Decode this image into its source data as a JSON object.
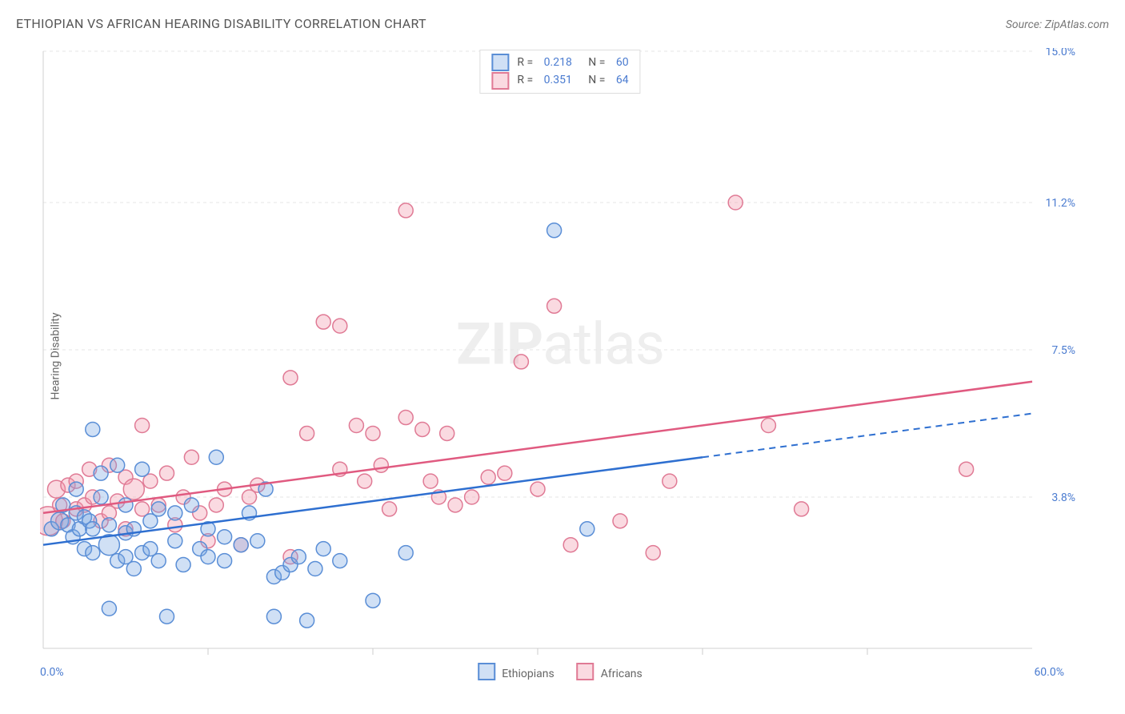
{
  "title": "ETHIOPIAN VS AFRICAN HEARING DISABILITY CORRELATION CHART",
  "source": "Source: ZipAtlas.com",
  "watermark_zip": "ZIP",
  "watermark_atlas": "atlas",
  "ylabel": "Hearing Disability",
  "chart": {
    "type": "scatter",
    "xlim": [
      0,
      60
    ],
    "ylim": [
      0,
      15
    ],
    "x_min_label": "0.0%",
    "x_max_label": "60.0%",
    "y_ticks": [
      3.8,
      7.5,
      11.2,
      15.0
    ],
    "y_tick_labels": [
      "3.8%",
      "7.5%",
      "11.2%",
      "15.0%"
    ],
    "x_tick_positions": [
      10,
      20,
      30,
      40,
      50
    ],
    "grid_color": "#e5e5e5",
    "tick_color": "#cccccc",
    "axis_color": "#d0d0d0",
    "background_color": "#ffffff",
    "axis_label_color": "#4a7bd0",
    "series": [
      {
        "name": "Ethiopians",
        "fill": "rgba(120,165,225,0.35)",
        "stroke": "#5a8ed6",
        "line_color": "#2e6fd0",
        "marker_r": 9,
        "stroke_width": 1.5,
        "R_label": "R = ",
        "R": 0.218,
        "N_label": "   N = ",
        "N": 60,
        "trend": {
          "x1": 0,
          "y1": 2.6,
          "x2": 40,
          "y2": 4.8,
          "dash_to_x": 60,
          "dash_to_y": 5.9
        },
        "points": [
          [
            0.5,
            3.0,
            9
          ],
          [
            1,
            3.2,
            11
          ],
          [
            1.2,
            3.6,
            9
          ],
          [
            1.5,
            3.1,
            9
          ],
          [
            1.8,
            2.8,
            9
          ],
          [
            2,
            3.4,
            9
          ],
          [
            2,
            4.0,
            9
          ],
          [
            2.2,
            3.0,
            9
          ],
          [
            2.5,
            3.3,
            9
          ],
          [
            2.5,
            2.5,
            9
          ],
          [
            2.8,
            3.2,
            9
          ],
          [
            3,
            5.5,
            9
          ],
          [
            3,
            3.0,
            9
          ],
          [
            3,
            2.4,
            9
          ],
          [
            3.5,
            4.4,
            9
          ],
          [
            3.5,
            3.8,
            9
          ],
          [
            4,
            2.6,
            13
          ],
          [
            4,
            3.1,
            9
          ],
          [
            4,
            1.0,
            9
          ],
          [
            4.5,
            4.6,
            9
          ],
          [
            4.5,
            2.2,
            9
          ],
          [
            5,
            2.3,
            9
          ],
          [
            5,
            3.6,
            9
          ],
          [
            5,
            2.9,
            9
          ],
          [
            5.5,
            3.0,
            9
          ],
          [
            5.5,
            2.0,
            9
          ],
          [
            6,
            4.5,
            9
          ],
          [
            6,
            2.4,
            9
          ],
          [
            6.5,
            3.2,
            9
          ],
          [
            6.5,
            2.5,
            9
          ],
          [
            7,
            2.2,
            9
          ],
          [
            7,
            3.5,
            9
          ],
          [
            7.5,
            0.8,
            9
          ],
          [
            8,
            2.7,
            9
          ],
          [
            8,
            3.4,
            9
          ],
          [
            8.5,
            2.1,
            9
          ],
          [
            9,
            3.6,
            9
          ],
          [
            9.5,
            2.5,
            9
          ],
          [
            10,
            2.3,
            9
          ],
          [
            10,
            3.0,
            9
          ],
          [
            10.5,
            4.8,
            9
          ],
          [
            11,
            2.2,
            9
          ],
          [
            11,
            2.8,
            9
          ],
          [
            12,
            2.6,
            9
          ],
          [
            12.5,
            3.4,
            9
          ],
          [
            13,
            2.7,
            9
          ],
          [
            13.5,
            4.0,
            9
          ],
          [
            14,
            1.8,
            9
          ],
          [
            14,
            0.8,
            9
          ],
          [
            14.5,
            1.9,
            9
          ],
          [
            15,
            2.1,
            9
          ],
          [
            15.5,
            2.3,
            9
          ],
          [
            16,
            0.7,
            9
          ],
          [
            16.5,
            2.0,
            9
          ],
          [
            17,
            2.5,
            9
          ],
          [
            18,
            2.2,
            9
          ],
          [
            20,
            1.2,
            9
          ],
          [
            22,
            2.4,
            9
          ],
          [
            31,
            10.5,
            9
          ],
          [
            33,
            3.0,
            9
          ]
        ]
      },
      {
        "name": "Africans",
        "fill": "rgba(240,150,170,0.35)",
        "stroke": "#e07a95",
        "line_color": "#e05a80",
        "marker_r": 9,
        "stroke_width": 1.5,
        "R_label": "R = ",
        "R": 0.351,
        "N_label": "   N = ",
        "N": 64,
        "trend": {
          "x1": 0,
          "y1": 3.4,
          "x2": 60,
          "y2": 6.7
        },
        "points": [
          [
            0.3,
            3.2,
            18
          ],
          [
            0.8,
            4.0,
            11
          ],
          [
            1,
            3.6,
            9
          ],
          [
            1.2,
            3.2,
            9
          ],
          [
            1.5,
            4.1,
            9
          ],
          [
            2,
            3.5,
            9
          ],
          [
            2,
            4.2,
            9
          ],
          [
            2.5,
            3.6,
            9
          ],
          [
            2.8,
            4.5,
            9
          ],
          [
            3,
            3.8,
            9
          ],
          [
            3.5,
            3.2,
            9
          ],
          [
            4,
            4.6,
            9
          ],
          [
            4,
            3.4,
            9
          ],
          [
            4.5,
            3.7,
            9
          ],
          [
            5,
            4.3,
            9
          ],
          [
            5,
            3.0,
            9
          ],
          [
            5.5,
            4.0,
            13
          ],
          [
            6,
            3.5,
            9
          ],
          [
            6,
            5.6,
            9
          ],
          [
            6.5,
            4.2,
            9
          ],
          [
            7,
            3.6,
            9
          ],
          [
            7.5,
            4.4,
            9
          ],
          [
            8,
            3.1,
            9
          ],
          [
            8.5,
            3.8,
            9
          ],
          [
            9,
            4.8,
            9
          ],
          [
            9.5,
            3.4,
            9
          ],
          [
            10,
            2.7,
            9
          ],
          [
            10.5,
            3.6,
            9
          ],
          [
            11,
            4.0,
            9
          ],
          [
            12,
            2.6,
            9
          ],
          [
            12.5,
            3.8,
            9
          ],
          [
            13,
            4.1,
            9
          ],
          [
            15,
            2.3,
            9
          ],
          [
            15,
            6.8,
            9
          ],
          [
            16,
            5.4,
            9
          ],
          [
            17,
            8.2,
            9
          ],
          [
            18,
            8.1,
            9
          ],
          [
            18,
            4.5,
            9
          ],
          [
            19,
            5.6,
            9
          ],
          [
            19.5,
            4.2,
            9
          ],
          [
            20,
            5.4,
            9
          ],
          [
            20.5,
            4.6,
            9
          ],
          [
            21,
            3.5,
            9
          ],
          [
            22,
            11.0,
            9
          ],
          [
            22,
            5.8,
            9
          ],
          [
            23,
            5.5,
            9
          ],
          [
            23.5,
            4.2,
            9
          ],
          [
            24,
            3.8,
            9
          ],
          [
            24.5,
            5.4,
            9
          ],
          [
            25,
            3.6,
            9
          ],
          [
            26,
            3.8,
            9
          ],
          [
            27,
            4.3,
            9
          ],
          [
            28,
            4.4,
            9
          ],
          [
            29,
            7.2,
            9
          ],
          [
            30,
            4.0,
            9
          ],
          [
            31,
            8.6,
            9
          ],
          [
            32,
            2.6,
            9
          ],
          [
            35,
            3.2,
            9
          ],
          [
            37,
            2.4,
            9
          ],
          [
            38,
            4.2,
            9
          ],
          [
            42,
            11.2,
            9
          ],
          [
            44,
            5.6,
            9
          ],
          [
            46,
            3.5,
            9
          ],
          [
            56,
            4.5,
            9
          ]
        ]
      }
    ],
    "bottom_legend": [
      {
        "label": "Ethiopians",
        "fill": "rgba(120,165,225,0.35)",
        "border": "#5a8ed6"
      },
      {
        "label": "Africans",
        "fill": "rgba(240,150,170,0.35)",
        "border": "#e07a95"
      }
    ]
  }
}
